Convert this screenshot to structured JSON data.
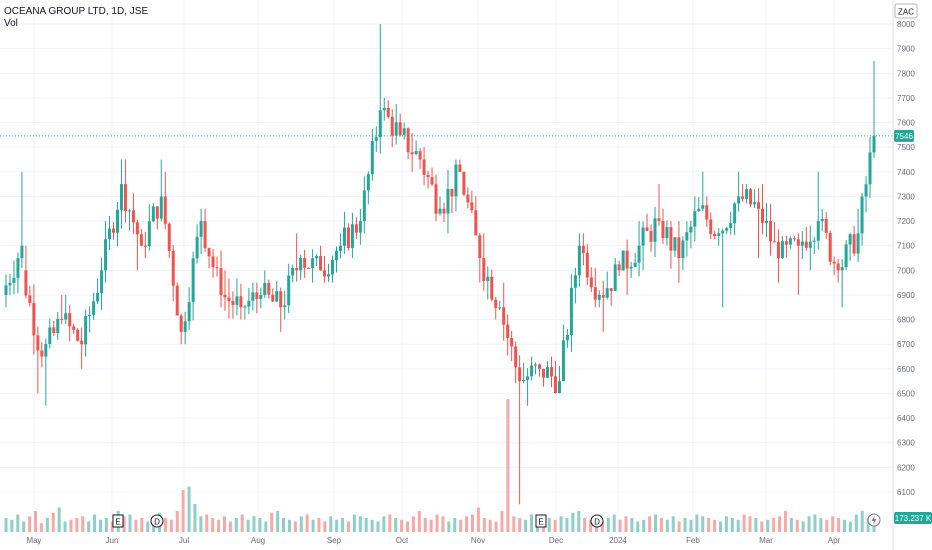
{
  "header": {
    "symbol_line": "OCEANA GROUP LTD, 1D, JSE",
    "volume_label": "Vol"
  },
  "currency_label": "ZAC",
  "last_price_label": "7546",
  "volume_last_label": "173.237 K",
  "colors": {
    "up": "#26a69a",
    "down": "#ef5350",
    "up_vol": "#8fcfc8",
    "down_vol": "#f7a9a7",
    "grid": "#f0f3fa",
    "text": "#131722",
    "axis_text": "#6a6d78"
  },
  "event_markers": [
    {
      "label": "E",
      "at": "Jun",
      "type": "earnings"
    },
    {
      "label": "D",
      "at": "Jun",
      "type": "dividend"
    },
    {
      "label": "E",
      "at": "Dec",
      "type": "earnings"
    },
    {
      "label": "D",
      "at": "Dec",
      "type": "dividend"
    }
  ],
  "chart_data": {
    "type": "candlestick",
    "title": "OCEANA GROUP LTD, 1D, JSE",
    "xlabel": "",
    "ylabel": "",
    "ylim": [
      6000,
      8000
    ],
    "y_ticks": [
      "6100",
      "6200",
      "6300",
      "6400",
      "6500",
      "6600",
      "6700",
      "6800",
      "6900",
      "7000",
      "7100",
      "7200",
      "7300",
      "7400",
      "7500",
      "7600",
      "7700",
      "7800",
      "7900",
      "8000"
    ],
    "x_ticks": [
      "May",
      "Jun",
      "Jul",
      "Aug",
      "Sep",
      "Oct",
      "Nov",
      "Dec",
      "2024",
      "Feb",
      "Mar",
      "Apr"
    ],
    "last_price": 7546,
    "last_volume": "173.237 K",
    "series": [
      {
        "name": "price",
        "points": [
          {
            "x": "Apr",
            "o": 6900,
            "h": 7400,
            "l": 6850,
            "c": 7100
          },
          {
            "x": "May",
            "o": 7000,
            "h": 7100,
            "l": 6500,
            "c": 6650
          },
          {
            "x": "May",
            "o": 6650,
            "h": 6900,
            "l": 6450,
            "c": 6800
          },
          {
            "x": "May",
            "o": 6800,
            "h": 6900,
            "l": 6600,
            "c": 6700
          },
          {
            "x": "May",
            "o": 6700,
            "h": 7050,
            "l": 6650,
            "c": 7000
          },
          {
            "x": "Jun",
            "o": 7000,
            "h": 7450,
            "l": 6950,
            "c": 7350
          },
          {
            "x": "Jun",
            "o": 7350,
            "h": 7450,
            "l": 7000,
            "c": 7100
          },
          {
            "x": "Jun",
            "o": 7100,
            "h": 7450,
            "l": 7050,
            "c": 7300
          },
          {
            "x": "Jun",
            "o": 7300,
            "h": 7400,
            "l": 6700,
            "c": 6750
          },
          {
            "x": "Jul",
            "o": 6750,
            "h": 7250,
            "l": 6700,
            "c": 7200
          },
          {
            "x": "Jul",
            "o": 7200,
            "h": 7250,
            "l": 6850,
            "c": 6900
          },
          {
            "x": "Jul",
            "o": 6900,
            "h": 7000,
            "l": 6800,
            "c": 6850
          },
          {
            "x": "Aug",
            "o": 6850,
            "h": 6950,
            "l": 6800,
            "c": 6900
          },
          {
            "x": "Aug",
            "o": 6900,
            "h": 7000,
            "l": 6750,
            "c": 6850
          },
          {
            "x": "Aug",
            "o": 6850,
            "h": 7150,
            "l": 6800,
            "c": 7050
          },
          {
            "x": "Aug",
            "o": 7050,
            "h": 7100,
            "l": 6950,
            "c": 7000
          },
          {
            "x": "Sep",
            "o": 7000,
            "h": 7150,
            "l": 6950,
            "c": 7100
          },
          {
            "x": "Sep",
            "o": 7100,
            "h": 7250,
            "l": 7050,
            "c": 7200
          },
          {
            "x": "Sep",
            "o": 7200,
            "h": 8000,
            "l": 7150,
            "c": 7650
          },
          {
            "x": "Sep",
            "o": 7650,
            "h": 7700,
            "l": 7500,
            "c": 7550
          },
          {
            "x": "Oct",
            "o": 7550,
            "h": 7600,
            "l": 7400,
            "c": 7450
          },
          {
            "x": "Oct",
            "o": 7450,
            "h": 7500,
            "l": 7200,
            "c": 7250
          },
          {
            "x": "Oct",
            "o": 7250,
            "h": 7450,
            "l": 7150,
            "c": 7400
          },
          {
            "x": "Oct",
            "o": 7400,
            "h": 7400,
            "l": 6950,
            "c": 7050
          },
          {
            "x": "Nov",
            "o": 7050,
            "h": 7150,
            "l": 6800,
            "c": 6850
          },
          {
            "x": "Nov",
            "o": 6850,
            "h": 6950,
            "l": 6050,
            "c": 6550
          },
          {
            "x": "Nov",
            "o": 6550,
            "h": 6650,
            "l": 6450,
            "c": 6600
          },
          {
            "x": "Nov",
            "o": 6600,
            "h": 6650,
            "l": 6500,
            "c": 6550
          },
          {
            "x": "Dec",
            "o": 6550,
            "h": 7150,
            "l": 6550,
            "c": 7100
          },
          {
            "x": "Dec",
            "o": 7100,
            "h": 7150,
            "l": 6850,
            "c": 6900
          },
          {
            "x": "Dec",
            "o": 6900,
            "h": 7050,
            "l": 6750,
            "c": 7000
          },
          {
            "x": "Dec",
            "o": 7000,
            "h": 7200,
            "l": 6900,
            "c": 7100
          },
          {
            "x": "2024",
            "o": 7100,
            "h": 7350,
            "l": 7000,
            "c": 7200
          },
          {
            "x": "2024",
            "o": 7200,
            "h": 7250,
            "l": 6950,
            "c": 7050
          },
          {
            "x": "2024",
            "o": 7050,
            "h": 7300,
            "l": 7000,
            "c": 7250
          },
          {
            "x": "Feb",
            "o": 7250,
            "h": 7400,
            "l": 7100,
            "c": 7150
          },
          {
            "x": "Feb",
            "o": 7150,
            "h": 7400,
            "l": 6850,
            "c": 7300
          },
          {
            "x": "Feb",
            "o": 7300,
            "h": 7350,
            "l": 7050,
            "c": 7250
          },
          {
            "x": "Mar",
            "o": 7250,
            "h": 7350,
            "l": 6950,
            "c": 7050
          },
          {
            "x": "Mar",
            "o": 7050,
            "h": 7150,
            "l": 6900,
            "c": 7100
          },
          {
            "x": "Mar",
            "o": 7100,
            "h": 7400,
            "l": 7000,
            "c": 7200
          },
          {
            "x": "Apr",
            "o": 7200,
            "h": 7250,
            "l": 6950,
            "c": 7000
          },
          {
            "x": "Apr",
            "o": 7000,
            "h": 7250,
            "l": 6850,
            "c": 7150
          },
          {
            "x": "Apr",
            "o": 7150,
            "h": 7850,
            "l": 7100,
            "c": 7546
          }
        ]
      },
      {
        "name": "Vol",
        "values": [
          40,
          35,
          50,
          30,
          45,
          60,
          25,
          40,
          55,
          70,
          30,
          35,
          40,
          45,
          30,
          50,
          35,
          40,
          30,
          60,
          45,
          50,
          35,
          40,
          30,
          45,
          55,
          40,
          35,
          60,
          120,
          130,
          80,
          45,
          50,
          40,
          35,
          45,
          30,
          40,
          50,
          35,
          45,
          40,
          30,
          55,
          60,
          40,
          35,
          30,
          45,
          50,
          35,
          40,
          30,
          45,
          35,
          40,
          30,
          50,
          45,
          40,
          35,
          30,
          45,
          50,
          40,
          35,
          30,
          45,
          60,
          40,
          35,
          50,
          45,
          30,
          40,
          35,
          45,
          50,
          70,
          40,
          35,
          30,
          60,
          380,
          45,
          40,
          35,
          50,
          45,
          30,
          40,
          35,
          45,
          40,
          55,
          60,
          40,
          35,
          45,
          30,
          40,
          50,
          35,
          45,
          40,
          30,
          35,
          45,
          50,
          40,
          35,
          45,
          30,
          40,
          35,
          50,
          45,
          40,
          35,
          30,
          45,
          40,
          35,
          50,
          45,
          40,
          30,
          35,
          40,
          45,
          60,
          40,
          35,
          30,
          45,
          50,
          40,
          35,
          45,
          40,
          35,
          30,
          50,
          60,
          40,
          45
        ]
      }
    ],
    "grid": true,
    "legend": "none"
  }
}
